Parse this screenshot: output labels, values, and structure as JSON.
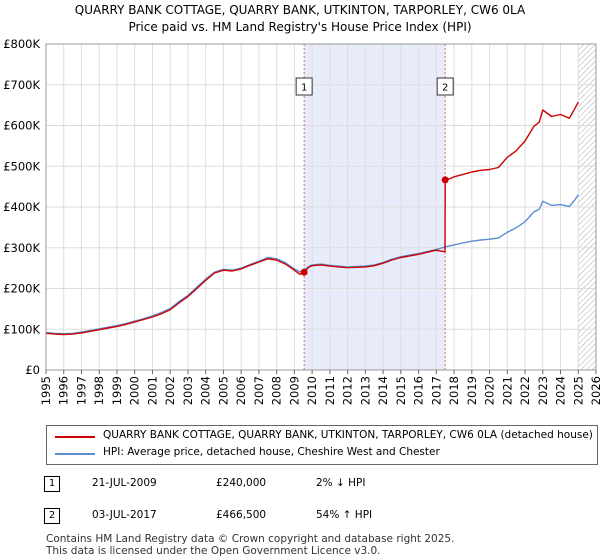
{
  "title_line1": "QUARRY BANK COTTAGE, QUARRY BANK, UTKINTON, TARPORLEY, CW6 0LA",
  "title_line2": "Price paid vs. HM Land Registry's House Price Index (HPI)",
  "chart_data": {
    "type": "line",
    "ylim": [
      0,
      800000
    ],
    "xlim": [
      1995,
      2026
    ],
    "y_ticks": [
      0,
      100000,
      200000,
      300000,
      400000,
      500000,
      600000,
      700000,
      800000
    ],
    "y_tick_labels": [
      "£0",
      "£100K",
      "£200K",
      "£300K",
      "£400K",
      "£500K",
      "£600K",
      "£700K",
      "£800K"
    ],
    "x_ticks": [
      1995,
      1996,
      1997,
      1998,
      1999,
      2000,
      2001,
      2002,
      2003,
      2004,
      2005,
      2006,
      2007,
      2008,
      2009,
      2010,
      2011,
      2012,
      2013,
      2014,
      2015,
      2016,
      2017,
      2018,
      2019,
      2020,
      2021,
      2022,
      2023,
      2024,
      2025,
      2026
    ],
    "x_tick_labels": [
      "1995",
      "1996",
      "1997",
      "1998",
      "1999",
      "2000",
      "2001",
      "2002",
      "2003",
      "2004",
      "2005",
      "2006",
      "2007",
      "2008",
      "2009",
      "2010",
      "2011",
      "2012",
      "2013",
      "2014",
      "2015",
      "2016",
      "2017",
      "2018",
      "2019",
      "2020",
      "2021",
      "2022",
      "2023",
      "2024",
      "2025",
      "2026"
    ],
    "shaded_region": [
      2009.55,
      2017.5
    ],
    "hatched_from": 2025.0,
    "series": [
      {
        "name": "QUARRY BANK COTTAGE, QUARRY BANK, UTKINTON, TARPORLEY, CW6 0LA (detached house)",
        "color": "#cc0000",
        "x": [
          1995.0,
          1995.5,
          1996.0,
          1996.5,
          1997.0,
          1997.5,
          1998.0,
          1998.5,
          1999.0,
          1999.5,
          2000.0,
          2000.5,
          2001.0,
          2001.5,
          2002.0,
          2002.5,
          2003.0,
          2003.5,
          2004.0,
          2004.5,
          2005.0,
          2005.5,
          2006.0,
          2006.5,
          2007.0,
          2007.5,
          2008.0,
          2008.5,
          2009.0,
          2009.3,
          2009.55,
          2009.8,
          2010.0,
          2010.5,
          2011.0,
          2011.5,
          2012.0,
          2012.5,
          2013.0,
          2013.5,
          2014.0,
          2014.5,
          2015.0,
          2015.5,
          2016.0,
          2016.5,
          2017.0,
          2017.49,
          2017.5,
          2017.8,
          2018.0,
          2018.5,
          2019.0,
          2019.5,
          2020.0,
          2020.5,
          2021.0,
          2021.5,
          2022.0,
          2022.5,
          2022.8,
          2023.0,
          2023.5,
          2024.0,
          2024.5,
          2024.8,
          2025.0
        ],
        "values": [
          90000,
          88000,
          87000,
          88000,
          91000,
          95000,
          99000,
          103000,
          107000,
          112000,
          118000,
          124000,
          130000,
          138000,
          148000,
          165000,
          180000,
          200000,
          220000,
          238000,
          245000,
          243000,
          248000,
          257000,
          265000,
          273000,
          270000,
          260000,
          245000,
          235000,
          240000,
          252000,
          256000,
          258000,
          255000,
          253000,
          251000,
          252000,
          253000,
          256000,
          262000,
          270000,
          276000,
          280000,
          284000,
          289000,
          294000,
          290000,
          466500,
          470000,
          474000,
          480000,
          486000,
          490000,
          492000,
          497000,
          522000,
          538000,
          562000,
          598000,
          608000,
          638000,
          622000,
          627000,
          618000,
          641000,
          658000
        ]
      },
      {
        "name": "HPI: Average price, detached house, Cheshire West and Chester",
        "color": "#5b8fd4",
        "x": [
          1995.0,
          1995.5,
          1996.0,
          1996.5,
          1997.0,
          1997.5,
          1998.0,
          1998.5,
          1999.0,
          1999.5,
          2000.0,
          2000.5,
          2001.0,
          2001.5,
          2002.0,
          2002.5,
          2003.0,
          2003.5,
          2004.0,
          2004.5,
          2005.0,
          2005.5,
          2006.0,
          2006.5,
          2007.0,
          2007.5,
          2008.0,
          2008.5,
          2009.0,
          2009.3,
          2009.55,
          2009.8,
          2010.0,
          2010.5,
          2011.0,
          2011.5,
          2012.0,
          2012.5,
          2013.0,
          2013.5,
          2014.0,
          2014.5,
          2015.0,
          2015.5,
          2016.0,
          2016.5,
          2017.0,
          2017.5,
          2018.0,
          2018.5,
          2019.0,
          2019.5,
          2020.0,
          2020.5,
          2021.0,
          2021.5,
          2022.0,
          2022.5,
          2022.8,
          2023.0,
          2023.5,
          2024.0,
          2024.5,
          2024.8,
          2025.0
        ],
        "values": [
          92000,
          90000,
          89000,
          90000,
          93000,
          97000,
          101000,
          105000,
          109000,
          114000,
          120000,
          126000,
          133000,
          141000,
          151000,
          168000,
          183000,
          203000,
          223000,
          240000,
          247000,
          245000,
          250000,
          259000,
          267000,
          276000,
          273000,
          263000,
          248000,
          241000,
          245000,
          254000,
          258000,
          260000,
          257000,
          255000,
          253000,
          254000,
          255000,
          258000,
          264000,
          272000,
          278000,
          282000,
          286000,
          291000,
          296000,
          302000,
          307000,
          312000,
          316000,
          319000,
          321000,
          324000,
          338000,
          349000,
          364000,
          388000,
          394000,
          414000,
          404000,
          406000,
          401000,
          417000,
          430000
        ]
      }
    ],
    "sales": [
      {
        "label": "1",
        "x": 2009.55,
        "value": 240000
      },
      {
        "label": "2",
        "x": 2017.5,
        "value": 466500
      }
    ]
  },
  "legend": [
    {
      "label": "QUARRY BANK COTTAGE, QUARRY BANK, UTKINTON, TARPORLEY, CW6 0LA (detached house)",
      "color": "#cc0000"
    },
    {
      "label": "HPI: Average price, detached house, Cheshire West and Chester",
      "color": "#5b8fd4"
    }
  ],
  "sales_table": [
    {
      "num": "1",
      "date": "21-JUL-2009",
      "price": "£240,000",
      "hpi": "2% ↓ HPI"
    },
    {
      "num": "2",
      "date": "03-JUL-2017",
      "price": "£466,500",
      "hpi": "54% ↑ HPI"
    }
  ],
  "footer_line1": "Contains HM Land Registry data © Crown copyright and database right 2025.",
  "footer_line2": "This data is licensed under the Open Government Licence v3.0."
}
